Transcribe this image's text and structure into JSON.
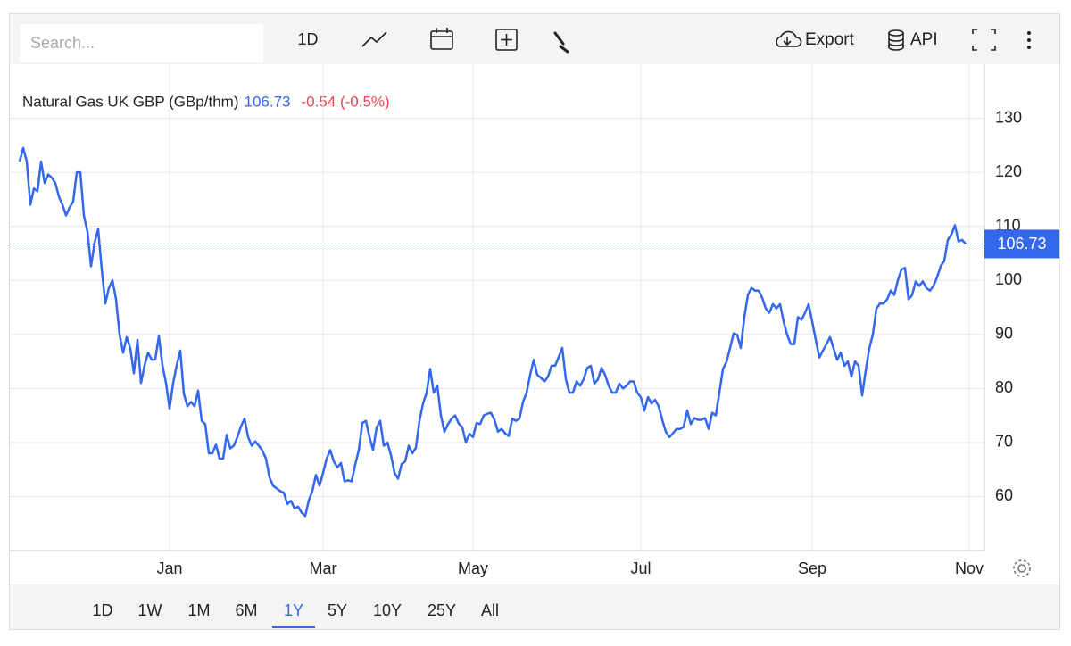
{
  "toolbar": {
    "search_placeholder": "Search...",
    "interval": "1D",
    "export": "Export",
    "api": "API"
  },
  "ranges": {
    "items": [
      "1D",
      "1W",
      "1M",
      "6M",
      "1Y",
      "5Y",
      "10Y",
      "25Y",
      "All"
    ],
    "active": 4
  },
  "chart_data": {
    "type": "line",
    "title": "Natural Gas UK GBP (GBp/thm)",
    "last_value": 106.73,
    "change_label": "-0.54 (-0.5%)",
    "color": "#3267ee",
    "grid": true,
    "ylim": [
      50,
      140
    ],
    "yticks": [
      60,
      70,
      80,
      90,
      100,
      110,
      120,
      130
    ],
    "categories": [
      null,
      null,
      null,
      null,
      null,
      null,
      null,
      null,
      null,
      null,
      null,
      null,
      null,
      null,
      null,
      null,
      null,
      null,
      null,
      null,
      null,
      null,
      null,
      null,
      null,
      null,
      null,
      null,
      null,
      null,
      null,
      null,
      null,
      null,
      null,
      null,
      null,
      null,
      null,
      null,
      null,
      null,
      "Jan",
      null,
      null,
      null,
      null,
      null,
      null,
      null,
      null,
      null,
      null,
      null,
      null,
      null,
      null,
      null,
      null,
      null,
      null,
      null,
      null,
      null,
      null,
      null,
      null,
      null,
      null,
      null,
      null,
      null,
      null,
      null,
      null,
      null,
      null,
      null,
      null,
      null,
      null,
      null,
      null,
      null,
      null,
      "Mar",
      null,
      null,
      null,
      null,
      null,
      null,
      null,
      null,
      null,
      null,
      null,
      null,
      null,
      null,
      null,
      null,
      null,
      null,
      null,
      null,
      null,
      null,
      null,
      null,
      null,
      null,
      null,
      null,
      null,
      null,
      null,
      null,
      null,
      null,
      null,
      null,
      null,
      null,
      null,
      null,
      null,
      "May",
      null,
      null,
      null,
      null,
      null,
      null,
      null,
      null,
      null,
      null,
      null,
      null,
      null,
      null,
      null,
      null,
      null,
      null,
      null,
      null,
      null,
      null,
      null,
      null,
      null,
      null,
      null,
      null,
      null,
      null,
      null,
      null,
      null,
      null,
      null,
      null,
      null,
      null,
      null,
      null,
      null,
      null,
      null,
      null,
      null,
      null,
      "Jul",
      null,
      null,
      null,
      null,
      null,
      null,
      null,
      null,
      null,
      null,
      null,
      null,
      null,
      null,
      null,
      null,
      null,
      null,
      null,
      null,
      null,
      null,
      null,
      null,
      null,
      null,
      null,
      null,
      null,
      null,
      null,
      null,
      null,
      null,
      null,
      null,
      null,
      null,
      null,
      null,
      null,
      null,
      null,
      null,
      null,
      null,
      null,
      "Sep",
      null,
      null,
      null,
      null,
      null,
      null,
      null,
      null,
      null,
      null,
      null,
      null,
      null,
      null,
      null,
      null,
      null,
      null,
      null,
      null,
      null,
      null,
      null,
      null,
      null,
      null,
      null,
      null,
      null,
      null,
      null,
      null,
      null,
      null,
      null,
      null,
      null,
      null,
      null,
      null,
      null,
      null,
      null,
      "Nov"
    ],
    "values": [
      122,
      124.5,
      122,
      114,
      117,
      116.5,
      122,
      118,
      119.6,
      119,
      118,
      115.5,
      114,
      112,
      113.5,
      114.6,
      120,
      120,
      112,
      109,
      102.6,
      107,
      109.5,
      102,
      95.7,
      98.6,
      100,
      96.5,
      90,
      86.6,
      89.5,
      87.4,
      82.8,
      89,
      81,
      84.3,
      86.6,
      85.3,
      85.4,
      89.7,
      84.3,
      81,
      76.3,
      81,
      84.3,
      87,
      79,
      76.7,
      77.5,
      76.7,
      79.6,
      74,
      73.4,
      68,
      68,
      69.6,
      67,
      67,
      71.4,
      68.9,
      69.4,
      71,
      73,
      74.4,
      71,
      69.4,
      70.2,
      69.4,
      68.5,
      67,
      63.5,
      62,
      61.5,
      61,
      60.7,
      58.6,
      59.2,
      57.8,
      58.1,
      57,
      56.4,
      59.3,
      61,
      64,
      62,
      64.4,
      67,
      68.6,
      66.5,
      65.4,
      66.2,
      62.8,
      63,
      62.8,
      65.9,
      68.6,
      73.6,
      74,
      71,
      68.6,
      72.8,
      74,
      69.4,
      70,
      67.7,
      64.4,
      63.3,
      66,
      66.5,
      69.4,
      68,
      69,
      74,
      77.2,
      79.2,
      83.6,
      79.2,
      80.5,
      75,
      72,
      73.4,
      74.4,
      75,
      73.5,
      72.8,
      70,
      71.6,
      71,
      73.6,
      73.4,
      75,
      75.3,
      75.5,
      74.2,
      72,
      72.5,
      71.7,
      71.2,
      74.4,
      74,
      74.4,
      77.5,
      79.2,
      82.5,
      85.3,
      82.5,
      82,
      81.3,
      82.2,
      84.2,
      84.2,
      85.8,
      87.5,
      81.7,
      79.2,
      79.2,
      81.3,
      80.5,
      81.7,
      83.8,
      84.2,
      80.9,
      81.7,
      83.8,
      82.5,
      80.5,
      79.2,
      79.2,
      80.9,
      80,
      80.5,
      81.3,
      81.3,
      79.2,
      78.4,
      75.9,
      78.4,
      77.2,
      77.9,
      76.7,
      74.2,
      72,
      71,
      71.7,
      72.5,
      72.5,
      72.9,
      75.9,
      73.4,
      74.5,
      74.2,
      74.2,
      74.5,
      72.5,
      75.5,
      75,
      79.2,
      83.6,
      84.9,
      87.5,
      90.2,
      89.9,
      87.5,
      93.2,
      97.3,
      98.6,
      98.1,
      98.1,
      96.8,
      94.8,
      94,
      95.6,
      94.8,
      95.6,
      92.4,
      89.9,
      88.2,
      88.2,
      93.2,
      92.7,
      94,
      95.6,
      92.4,
      89,
      85.7,
      87,
      88.2,
      89.5,
      87.4,
      85.3,
      86.6,
      84.2,
      85,
      82.2,
      85,
      84.2,
      78.7,
      83.3,
      87.4,
      90,
      94.8,
      95.7,
      95.7,
      96.5,
      98.1,
      97.3,
      100,
      102,
      102.3,
      96.5,
      97.3,
      99.8,
      99,
      99.8,
      98.6,
      98.1,
      99,
      100.6,
      102.6,
      103.6,
      107.5,
      108.5,
      110.2,
      107.2,
      107.5,
      106.73,
      null
    ]
  }
}
